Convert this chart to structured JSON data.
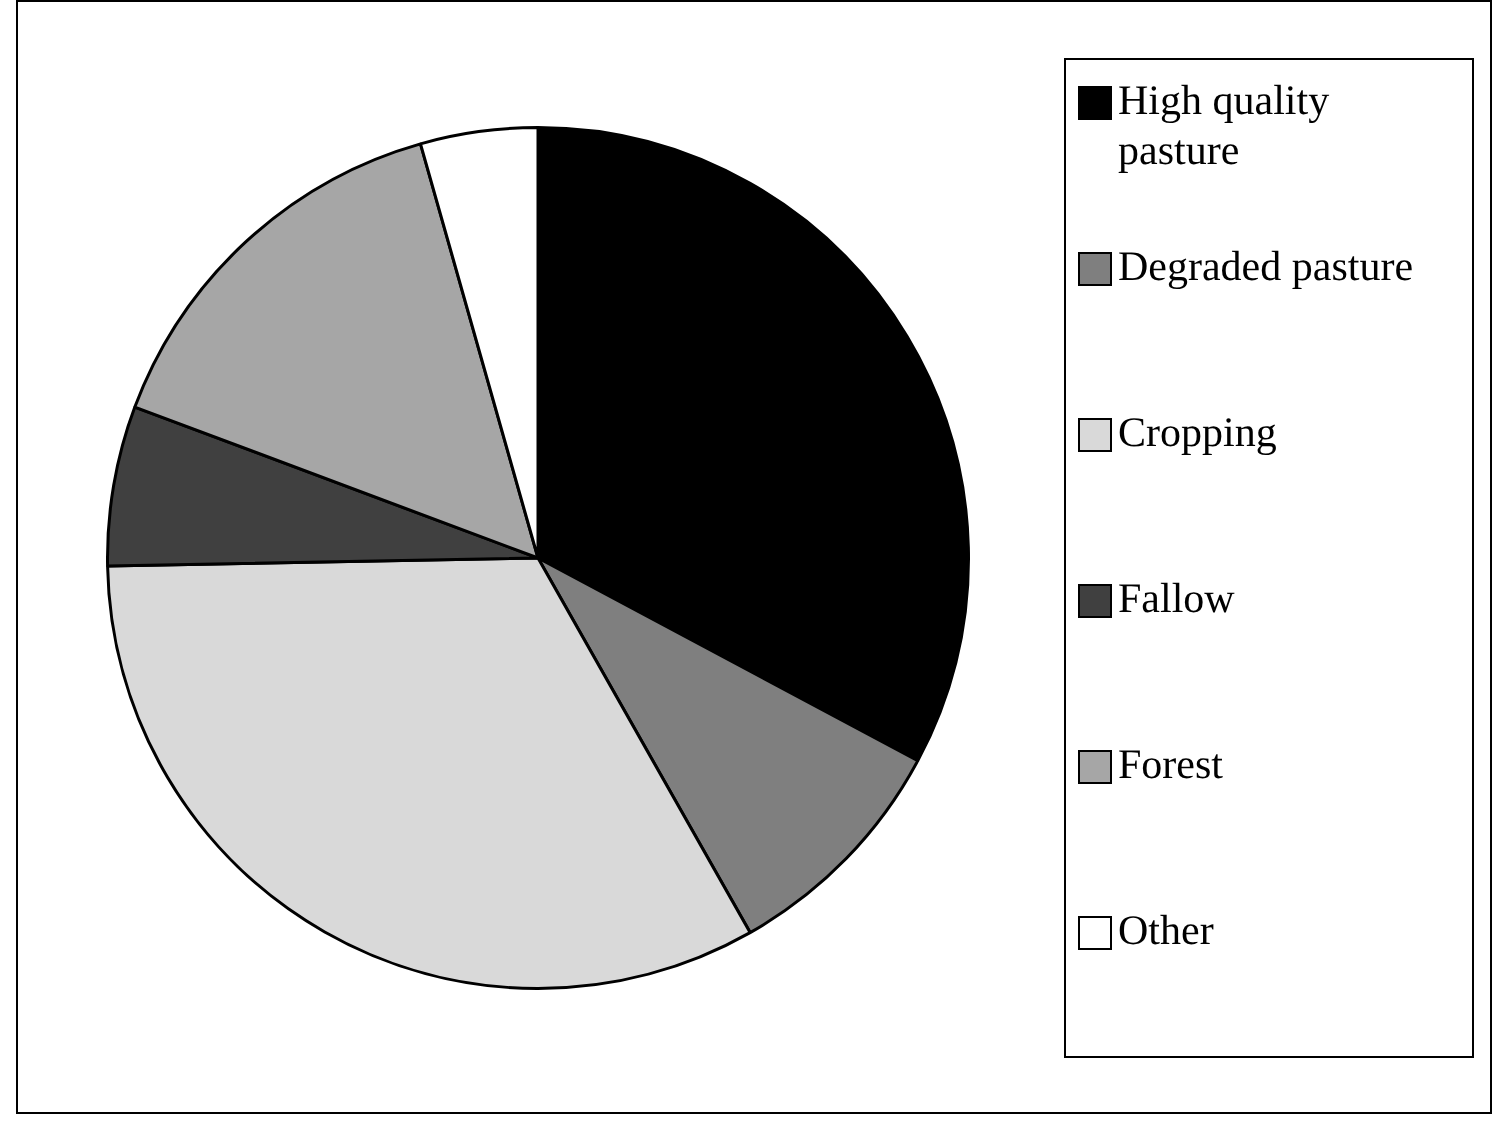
{
  "chart_data": {
    "type": "pie",
    "categories": [
      "High quality pasture",
      "Degraded pasture",
      "Cropping",
      "Fallow",
      "Forest",
      "Other"
    ],
    "values": [
      32.8,
      9.0,
      32.9,
      6.0,
      14.9,
      4.4
    ],
    "colors": [
      "#000000",
      "#7f7f7f",
      "#d9d9d9",
      "#404040",
      "#a6a6a6",
      "#ffffff"
    ],
    "legend": "right"
  }
}
